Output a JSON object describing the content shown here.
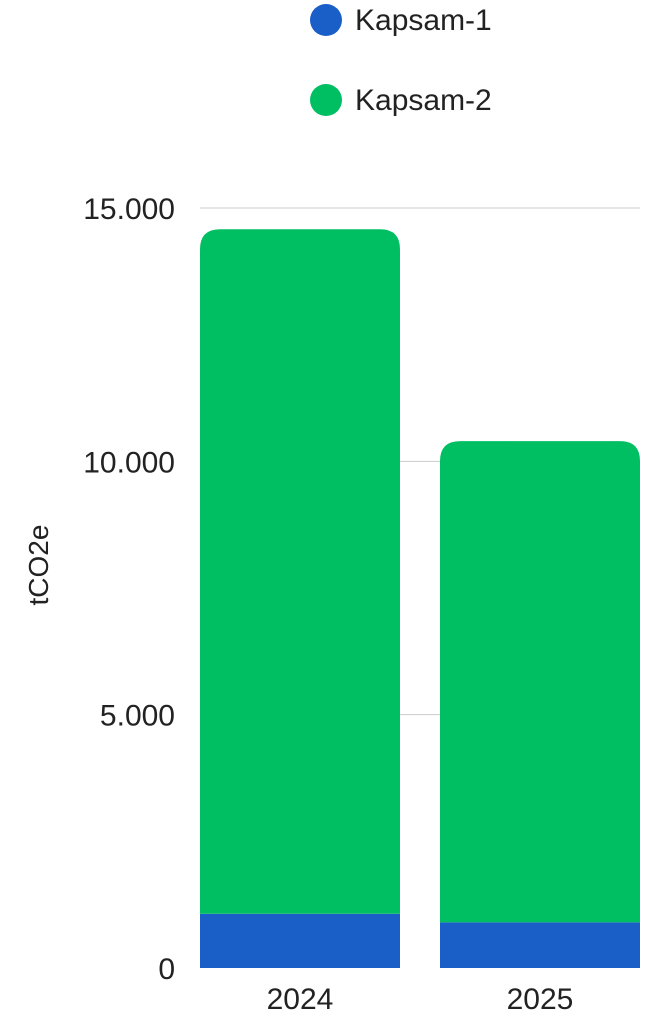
{
  "chart_data": {
    "type": "bar",
    "stacked": true,
    "categories": [
      "2024",
      "2025"
    ],
    "series": [
      {
        "name": "Kapsam-1",
        "values": [
          1070,
          900
        ],
        "color": "#1a5fc8"
      },
      {
        "name": "Kapsam-2",
        "values": [
          13510,
          9500
        ],
        "color": "#00bf63"
      }
    ],
    "ylabel": "tCO2e",
    "ylim": [
      0,
      15000
    ],
    "y_ticks": [
      {
        "value": 0,
        "label": "0"
      },
      {
        "value": 5000,
        "label": "5.000"
      },
      {
        "value": 10000,
        "label": "10.000"
      },
      {
        "value": 15000,
        "label": "15.000"
      }
    ],
    "grid": true,
    "legend_position": "top"
  }
}
